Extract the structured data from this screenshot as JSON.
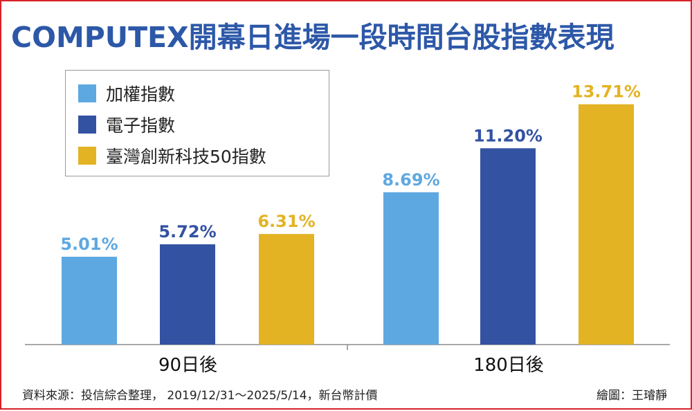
{
  "title": "COMPUTEX開幕日進場一段時間台股指數表現",
  "footer": {
    "source": "資料來源：投信綜合整理， 2019/12/31～2025/5/14，新台幣計價",
    "credit": "繪圖：王璿靜"
  },
  "chart_data": {
    "type": "bar",
    "title": "COMPUTEX開幕日進場一段時間台股指數表現",
    "categories": [
      "90日後",
      "180日後"
    ],
    "series": [
      {
        "name": "加權指數",
        "color": "#5ea8e1",
        "values": [
          5.01,
          8.69
        ],
        "labels": [
          "5.01%",
          "8.69%"
        ]
      },
      {
        "name": "電子指數",
        "color": "#3352a2",
        "values": [
          5.72,
          11.2
        ],
        "labels": [
          "5.72%",
          "11.20%"
        ]
      },
      {
        "name": "臺灣創新科技50指數",
        "color": "#e3b324",
        "values": [
          6.31,
          13.71
        ],
        "labels": [
          "6.31%",
          "13.71%"
        ]
      }
    ],
    "ylim": [
      0,
      15
    ],
    "grid": false,
    "legend_position": "top-left",
    "xlabel": "",
    "ylabel": ""
  }
}
